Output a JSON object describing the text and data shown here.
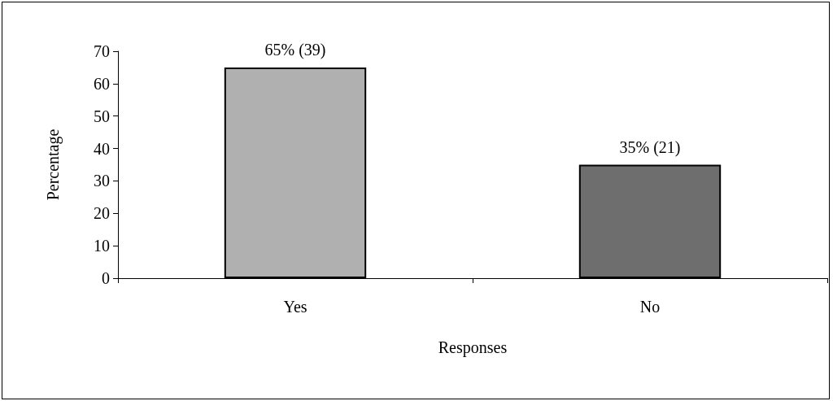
{
  "chart_data": {
    "type": "bar",
    "xlabel": "Responses",
    "ylabel": "Percentage",
    "categories": [
      "Yes",
      "No"
    ],
    "values": [
      65,
      35
    ],
    "colors": [
      "#b0b0b0",
      "#6e6e6e"
    ],
    "value_labels": [
      "65% (39)",
      "35% (21)"
    ],
    "ylim": [
      0,
      70
    ],
    "yticks": [
      0,
      10,
      20,
      30,
      40,
      50,
      60,
      70
    ],
    "grid": false
  }
}
